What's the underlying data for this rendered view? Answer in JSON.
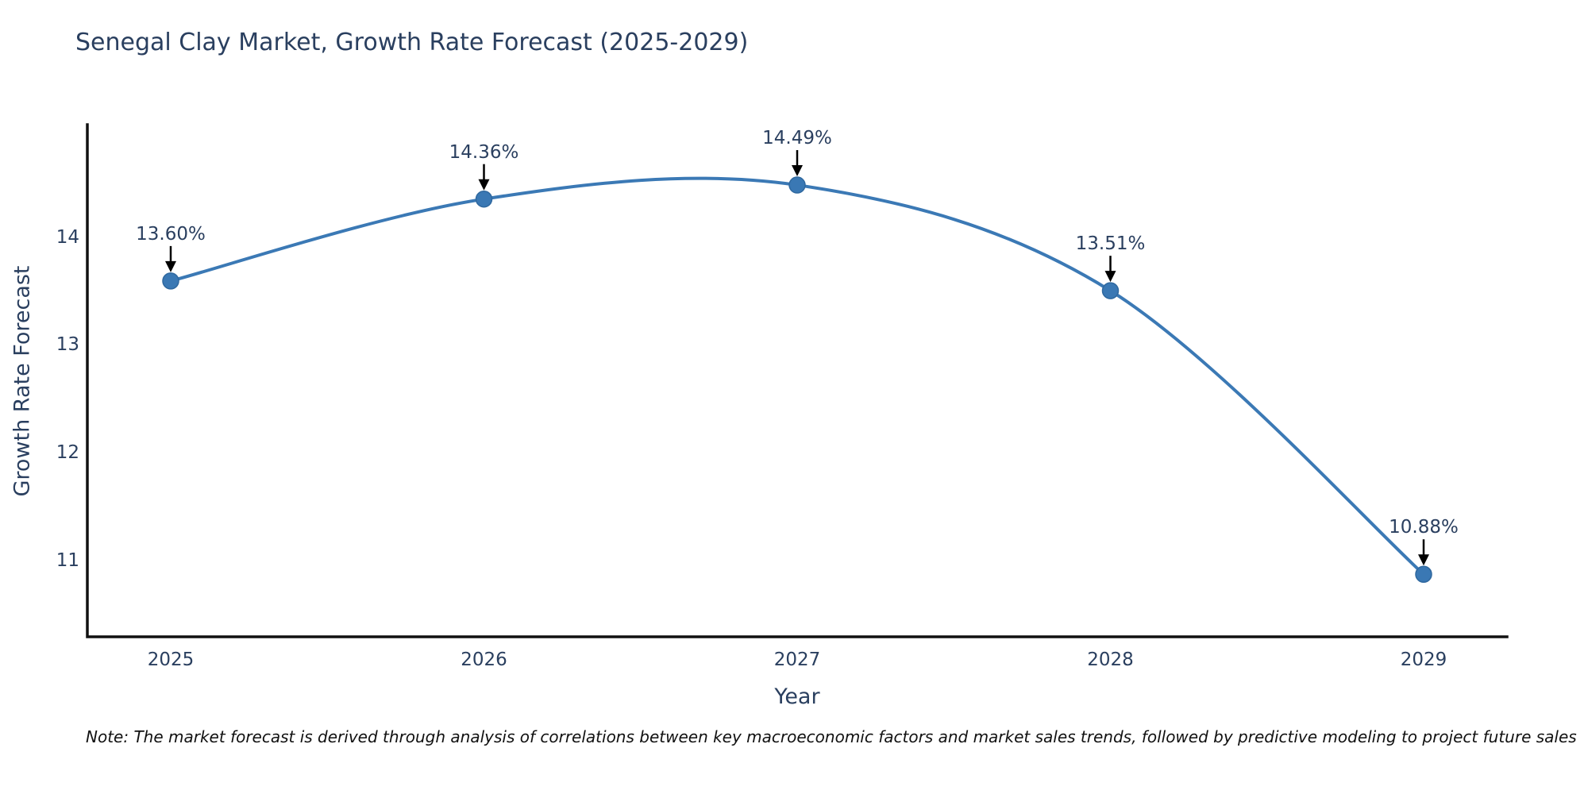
{
  "note": "Note: The market forecast is derived through analysis of correlations between key macroeconomic factors and market sales trends, followed by predictive modeling to project future sales",
  "chart_data": {
    "type": "line",
    "title": "Senegal Clay Market, Growth Rate Forecast (2025-2029)",
    "xlabel": "Year",
    "ylabel": "Growth Rate Forecast",
    "categories": [
      "2025",
      "2026",
      "2027",
      "2028",
      "2029"
    ],
    "values": [
      13.6,
      14.36,
      14.49,
      13.51,
      10.88
    ],
    "point_labels": [
      "13.60%",
      "14.36%",
      "14.49%",
      "13.51%",
      "10.88%"
    ],
    "y_ticks": [
      11,
      12,
      13,
      14
    ],
    "ylim": [
      10.3,
      15.05
    ],
    "line_shape": "spline",
    "grid": false,
    "legend_position": "none",
    "colors": {
      "line": "#3b79b5",
      "marker_fill": "#3a78b4",
      "marker_stroke": "#2f689f",
      "axis_line": "#111111",
      "text": "#2a3f5f",
      "annotation_arrow": "#000000"
    }
  }
}
